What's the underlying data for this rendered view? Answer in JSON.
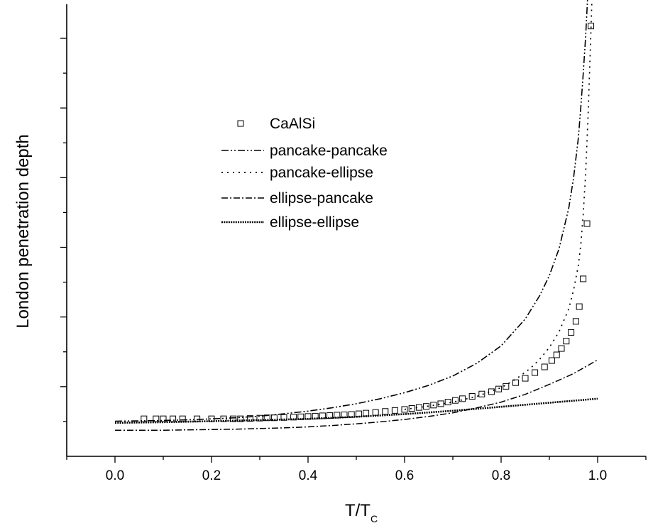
{
  "chart_data": {
    "type": "line",
    "title": "",
    "xlabel_main": "T/T",
    "xlabel_sub": "C",
    "ylabel": "London penetration depth",
    "xlim": [
      -0.1,
      1.1
    ],
    "xticks": [
      "0.0",
      "0.2",
      "0.4",
      "0.6",
      "0.8",
      "1.0"
    ],
    "y_tick_count": 12,
    "grid": false,
    "legend": "center-left",
    "series": [
      {
        "name": "CaAlSi",
        "kind": "scatter",
        "marker": "open-square",
        "x": [
          0.06,
          0.085,
          0.1,
          0.12,
          0.14,
          0.17,
          0.2,
          0.225,
          0.245,
          0.26,
          0.28,
          0.3,
          0.315,
          0.33,
          0.35,
          0.37,
          0.385,
          0.4,
          0.415,
          0.43,
          0.445,
          0.46,
          0.475,
          0.49,
          0.505,
          0.52,
          0.54,
          0.56,
          0.58,
          0.6,
          0.615,
          0.63,
          0.645,
          0.66,
          0.675,
          0.69,
          0.705,
          0.72,
          0.74,
          0.76,
          0.78,
          0.795,
          0.81,
          0.83,
          0.85,
          0.87,
          0.89,
          0.905,
          0.915,
          0.925,
          0.935,
          0.945,
          0.955,
          0.962,
          0.97,
          0.978,
          0.986
        ],
        "y": [
          1.12,
          1.12,
          1.12,
          1.12,
          1.12,
          1.12,
          1.12,
          1.12,
          1.12,
          1.12,
          1.13,
          1.14,
          1.15,
          1.15,
          1.16,
          1.17,
          1.18,
          1.19,
          1.2,
          1.21,
          1.22,
          1.23,
          1.24,
          1.25,
          1.27,
          1.29,
          1.31,
          1.34,
          1.37,
          1.4,
          1.43,
          1.46,
          1.49,
          1.53,
          1.57,
          1.62,
          1.67,
          1.72,
          1.79,
          1.86,
          1.93,
          2.01,
          2.09,
          2.2,
          2.33,
          2.5,
          2.67,
          2.86,
          3.03,
          3.22,
          3.44,
          3.7,
          4.03,
          4.47,
          5.3,
          6.95,
          12.85
        ]
      },
      {
        "name": "pancake-pancake",
        "kind": "line",
        "dash": "dash-dot-dot",
        "x": [
          0,
          0.05,
          0.1,
          0.15,
          0.2,
          0.25,
          0.3,
          0.35,
          0.4,
          0.45,
          0.5,
          0.55,
          0.6,
          0.65,
          0.7,
          0.75,
          0.8,
          0.85,
          0.88,
          0.9,
          0.92,
          0.94,
          0.95,
          0.96,
          0.965,
          0.97,
          0.975,
          0.98
        ],
        "y": [
          1.05,
          1.06,
          1.07,
          1.09,
          1.12,
          1.15,
          1.2,
          1.27,
          1.35,
          1.45,
          1.57,
          1.72,
          1.9,
          2.12,
          2.4,
          2.78,
          3.3,
          4.1,
          4.8,
          5.4,
          6.2,
          7.4,
          8.3,
          9.5,
          10.4,
          11.4,
          12.5,
          13.9
        ]
      },
      {
        "name": "pancake-ellipse",
        "kind": "line",
        "dash": "dotted-sparse",
        "x": [
          0.6,
          0.65,
          0.7,
          0.75,
          0.8,
          0.83,
          0.86,
          0.88,
          0.9,
          0.92,
          0.94,
          0.95,
          0.96,
          0.965,
          0.97,
          0.975,
          0.98,
          0.985,
          0.99
        ],
        "y": [
          1.4,
          1.5,
          1.62,
          1.79,
          2.05,
          2.3,
          2.62,
          2.9,
          3.25,
          3.72,
          4.4,
          4.95,
          5.7,
          6.3,
          7.2,
          8.4,
          10.1,
          12.2,
          14.5
        ]
      },
      {
        "name": "ellipse-pancake",
        "kind": "line",
        "dash": "dash-dot",
        "x": [
          0,
          0.05,
          0.1,
          0.15,
          0.2,
          0.25,
          0.3,
          0.35,
          0.4,
          0.45,
          0.5,
          0.55,
          0.6,
          0.65,
          0.7,
          0.75,
          0.8,
          0.85,
          0.9,
          0.95,
          1.0
        ],
        "y": [
          0.78,
          0.78,
          0.78,
          0.79,
          0.8,
          0.81,
          0.83,
          0.85,
          0.88,
          0.92,
          0.97,
          1.03,
          1.1,
          1.19,
          1.3,
          1.45,
          1.62,
          1.85,
          2.15,
          2.47,
          2.88
        ]
      },
      {
        "name": "ellipse-ellipse",
        "kind": "line",
        "dash": "dense-dots",
        "x": [
          0,
          0.1,
          0.2,
          0.3,
          0.4,
          0.5,
          0.6,
          0.7,
          0.8,
          0.9,
          1.0
        ],
        "y": [
          1.0,
          1.02,
          1.05,
          1.08,
          1.12,
          1.18,
          1.26,
          1.36,
          1.48,
          1.6,
          1.72
        ]
      }
    ]
  }
}
